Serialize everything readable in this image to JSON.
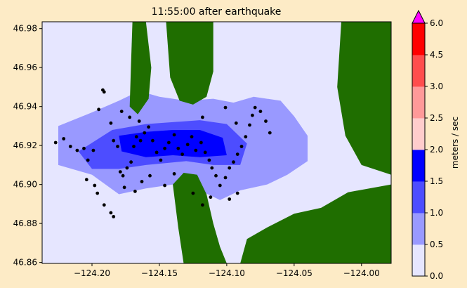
{
  "chart_data": {
    "type": "heatmap",
    "title": "11:55:00 after earthquake",
    "xlabel": "",
    "ylabel": "",
    "xlim": [
      -124.237,
      -123.978
    ],
    "ylim": [
      46.8595,
      46.9835
    ],
    "xticks": [
      -124.2,
      -124.15,
      -124.1,
      -124.05,
      -124.0
    ],
    "xtick_labels": [
      "−124.20",
      "−124.15",
      "−124.10",
      "−124.05",
      "−124.00"
    ],
    "yticks": [
      46.86,
      46.88,
      46.9,
      46.92,
      46.94,
      46.96,
      46.98
    ],
    "ytick_labels": [
      "46.86",
      "46.88",
      "46.90",
      "46.92",
      "46.94",
      "46.96",
      "46.98"
    ],
    "grid": false,
    "colorbar": {
      "label": "meters / sec",
      "levels": [
        0.0,
        0.5,
        1.0,
        1.5,
        2.0,
        2.5,
        3.0,
        4.5,
        6.0
      ],
      "tick_labels": [
        "0.0",
        "0.5",
        "1.0",
        "1.5",
        "2.0",
        "2.5",
        "3.0",
        "4.5",
        "6.0"
      ],
      "colors": [
        "#e6e6ff",
        "#9999ff",
        "#4d4dff",
        "#0000ff",
        "#ffcccc",
        "#ff9999",
        "#ff4d4d",
        "#ff0000"
      ],
      "extend_max_color": "#ff00ff"
    },
    "colors": {
      "water_background": "#e6e6ff",
      "land": "#1f6e00"
    },
    "speed_zones": [
      {
        "name": "bay-region",
        "level": "0.5-1.0",
        "points": [
          [
            -124.225,
            46.93
          ],
          [
            -124.2,
            46.937
          ],
          [
            -124.18,
            46.943
          ],
          [
            -124.165,
            46.948
          ],
          [
            -124.15,
            46.945
          ],
          [
            -124.13,
            46.943
          ],
          [
            -124.11,
            46.944
          ],
          [
            -124.095,
            46.942
          ],
          [
            -124.08,
            46.945
          ],
          [
            -124.06,
            46.943
          ],
          [
            -124.05,
            46.935
          ],
          [
            -124.04,
            46.925
          ],
          [
            -124.04,
            46.912
          ],
          [
            -124.055,
            46.905
          ],
          [
            -124.07,
            46.9
          ],
          [
            -124.09,
            46.897
          ],
          [
            -124.105,
            46.892
          ],
          [
            -124.12,
            46.897
          ],
          [
            -124.14,
            46.9
          ],
          [
            -124.16,
            46.898
          ],
          [
            -124.18,
            46.895
          ],
          [
            -124.2,
            46.905
          ],
          [
            -124.225,
            46.91
          ]
        ]
      },
      {
        "name": "channel-fast",
        "level": "1.0-1.5",
        "points": [
          [
            -124.21,
            46.917
          ],
          [
            -124.185,
            46.928
          ],
          [
            -124.16,
            46.931
          ],
          [
            -124.14,
            46.932
          ],
          [
            -124.12,
            46.933
          ],
          [
            -124.1,
            46.931
          ],
          [
            -124.085,
            46.921
          ],
          [
            -124.09,
            46.91
          ],
          [
            -124.11,
            46.91
          ],
          [
            -124.13,
            46.912
          ],
          [
            -124.16,
            46.91
          ],
          [
            -124.18,
            46.908
          ],
          [
            -124.2,
            46.908
          ]
        ]
      },
      {
        "name": "channel-fastest",
        "level": "1.5-2.0",
        "points": [
          [
            -124.18,
            46.925
          ],
          [
            -124.16,
            46.927
          ],
          [
            -124.14,
            46.928
          ],
          [
            -124.12,
            46.928
          ],
          [
            -124.103,
            46.924
          ],
          [
            -124.1,
            46.915
          ],
          [
            -124.12,
            46.914
          ],
          [
            -124.14,
            46.915
          ],
          [
            -124.16,
            46.914
          ],
          [
            -124.178,
            46.917
          ]
        ]
      }
    ],
    "land_polygons": [
      {
        "name": "north-spit",
        "points": [
          [
            -124.17,
            46.9835
          ],
          [
            -124.16,
            46.9835
          ],
          [
            -124.156,
            46.96
          ],
          [
            -124.158,
            46.944
          ],
          [
            -124.166,
            46.936
          ],
          [
            -124.172,
            46.94
          ],
          [
            -124.171,
            46.962
          ]
        ]
      },
      {
        "name": "north-shore",
        "points": [
          [
            -124.145,
            46.9835
          ],
          [
            -124.11,
            46.9835
          ],
          [
            -124.11,
            46.958
          ],
          [
            -124.115,
            46.945
          ],
          [
            -124.125,
            46.941
          ],
          [
            -124.135,
            46.943
          ],
          [
            -124.142,
            46.955
          ]
        ]
      },
      {
        "name": "northeast-shore",
        "points": [
          [
            -124.015,
            46.9835
          ],
          [
            -123.978,
            46.9835
          ],
          [
            -123.978,
            46.905
          ],
          [
            -124.0,
            46.91
          ],
          [
            -124.012,
            46.925
          ],
          [
            -124.018,
            46.95
          ]
        ]
      },
      {
        "name": "south-peninsula",
        "points": [
          [
            -124.14,
            46.9
          ],
          [
            -124.132,
            46.906
          ],
          [
            -124.122,
            46.905
          ],
          [
            -124.115,
            46.895
          ],
          [
            -124.11,
            46.88
          ],
          [
            -124.105,
            46.868
          ],
          [
            -124.1,
            46.8595
          ],
          [
            -124.132,
            46.8595
          ],
          [
            -124.136,
            46.878
          ]
        ]
      },
      {
        "name": "southeast-shore",
        "points": [
          [
            -124.09,
            46.8595
          ],
          [
            -123.978,
            46.8595
          ],
          [
            -123.978,
            46.9
          ],
          [
            -124.01,
            46.896
          ],
          [
            -124.03,
            46.888
          ],
          [
            -124.05,
            46.885
          ],
          [
            -124.07,
            46.878
          ],
          [
            -124.085,
            46.872
          ]
        ]
      }
    ],
    "gauges": [
      [
        -124.227,
        46.9215
      ],
      [
        -124.221,
        46.9235
      ],
      [
        -124.216,
        46.9195
      ],
      [
        -124.211,
        46.9175
      ],
      [
        -124.206,
        46.9185
      ],
      [
        -124.203,
        46.9125
      ],
      [
        -124.199,
        46.9175
      ],
      [
        -124.195,
        46.9385
      ],
      [
        -124.191,
        46.9475
      ],
      [
        -124.192,
        46.9485
      ],
      [
        -124.186,
        46.9315
      ],
      [
        -124.184,
        46.9225
      ],
      [
        -124.181,
        46.9195
      ],
      [
        -124.179,
        46.9065
      ],
      [
        -124.177,
        46.9045
      ],
      [
        -124.174,
        46.9085
      ],
      [
        -124.171,
        46.9115
      ],
      [
        -124.169,
        46.9195
      ],
      [
        -124.167,
        46.9245
      ],
      [
        -124.164,
        46.9225
      ],
      [
        -124.161,
        46.9265
      ],
      [
        -124.158,
        46.9295
      ],
      [
        -124.155,
        46.9225
      ],
      [
        -124.152,
        46.9165
      ],
      [
        -124.149,
        46.9125
      ],
      [
        -124.146,
        46.9185
      ],
      [
        -124.143,
        46.9215
      ],
      [
        -124.139,
        46.9255
      ],
      [
        -124.136,
        46.9185
      ],
      [
        -124.133,
        46.9155
      ],
      [
        -124.129,
        46.9205
      ],
      [
        -124.126,
        46.9245
      ],
      [
        -124.123,
        46.9175
      ],
      [
        -124.119,
        46.9215
      ],
      [
        -124.116,
        46.9165
      ],
      [
        -124.113,
        46.9125
      ],
      [
        -124.111,
        46.9085
      ],
      [
        -124.108,
        46.9045
      ],
      [
        -124.105,
        46.8995
      ],
      [
        -124.101,
        46.9035
      ],
      [
        -124.098,
        46.9085
      ],
      [
        -124.095,
        46.9115
      ],
      [
        -124.092,
        46.9155
      ],
      [
        -124.089,
        46.9195
      ],
      [
        -124.086,
        46.9245
      ],
      [
        -124.083,
        46.9305
      ],
      [
        -124.081,
        46.9355
      ],
      [
        -124.079,
        46.9395
      ],
      [
        -124.075,
        46.9375
      ],
      [
        -124.071,
        46.9325
      ],
      [
        -124.068,
        46.9265
      ],
      [
        -124.204,
        46.9025
      ],
      [
        -124.198,
        46.8995
      ],
      [
        -124.196,
        46.8955
      ],
      [
        -124.191,
        46.8895
      ],
      [
        -124.186,
        46.8855
      ],
      [
        -124.184,
        46.8835
      ],
      [
        -124.176,
        46.8985
      ],
      [
        -124.168,
        46.8965
      ],
      [
        -124.163,
        46.9015
      ],
      [
        -124.157,
        46.9045
      ],
      [
        -124.146,
        46.8995
      ],
      [
        -124.139,
        46.9055
      ],
      [
        -124.125,
        46.8955
      ],
      [
        -124.118,
        46.8895
      ],
      [
        -124.112,
        46.8935
      ],
      [
        -124.098,
        46.8925
      ],
      [
        -124.092,
        46.8955
      ],
      [
        -124.178,
        46.9375
      ],
      [
        -124.172,
        46.9345
      ],
      [
        -124.165,
        46.9325
      ],
      [
        -124.118,
        46.9345
      ],
      [
        -124.101,
        46.9395
      ],
      [
        -124.093,
        46.9315
      ]
    ]
  }
}
